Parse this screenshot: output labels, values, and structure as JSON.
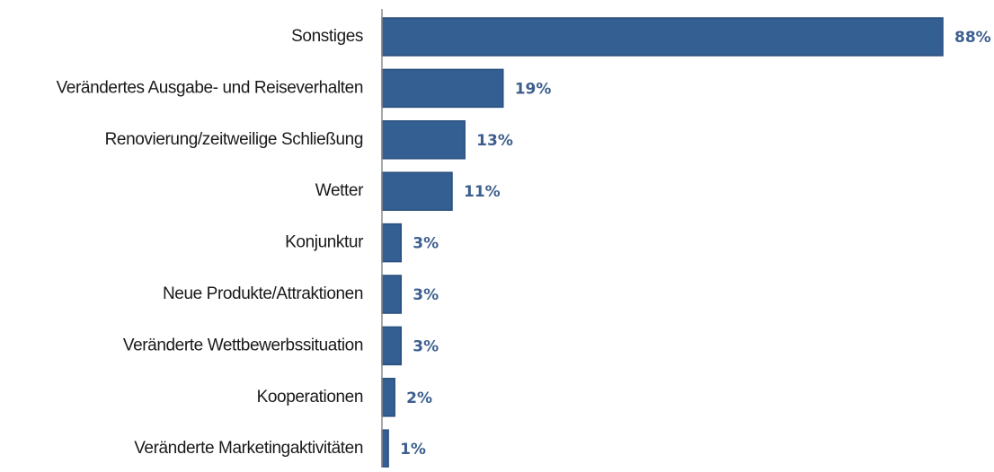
{
  "chart_data": {
    "type": "bar",
    "orientation": "horizontal",
    "categories": [
      "Sonstiges",
      "Verändertes Ausgabe- und Reiseverhalten",
      "Renovierung/zeitweilige Schließung",
      "Wetter",
      "Konjunktur",
      "Neue Produkte/Attraktionen",
      "Veränderte Wettbewerbssituation",
      "Kooperationen",
      "Veränderte Marketingaktivitäten"
    ],
    "values": [
      88,
      19,
      13,
      11,
      3,
      3,
      3,
      2,
      1
    ],
    "value_labels": [
      "88%",
      "19%",
      "13%",
      "11%",
      "3%",
      "3%",
      "3%",
      "2%",
      "1%"
    ],
    "color": "#335f93"
  }
}
